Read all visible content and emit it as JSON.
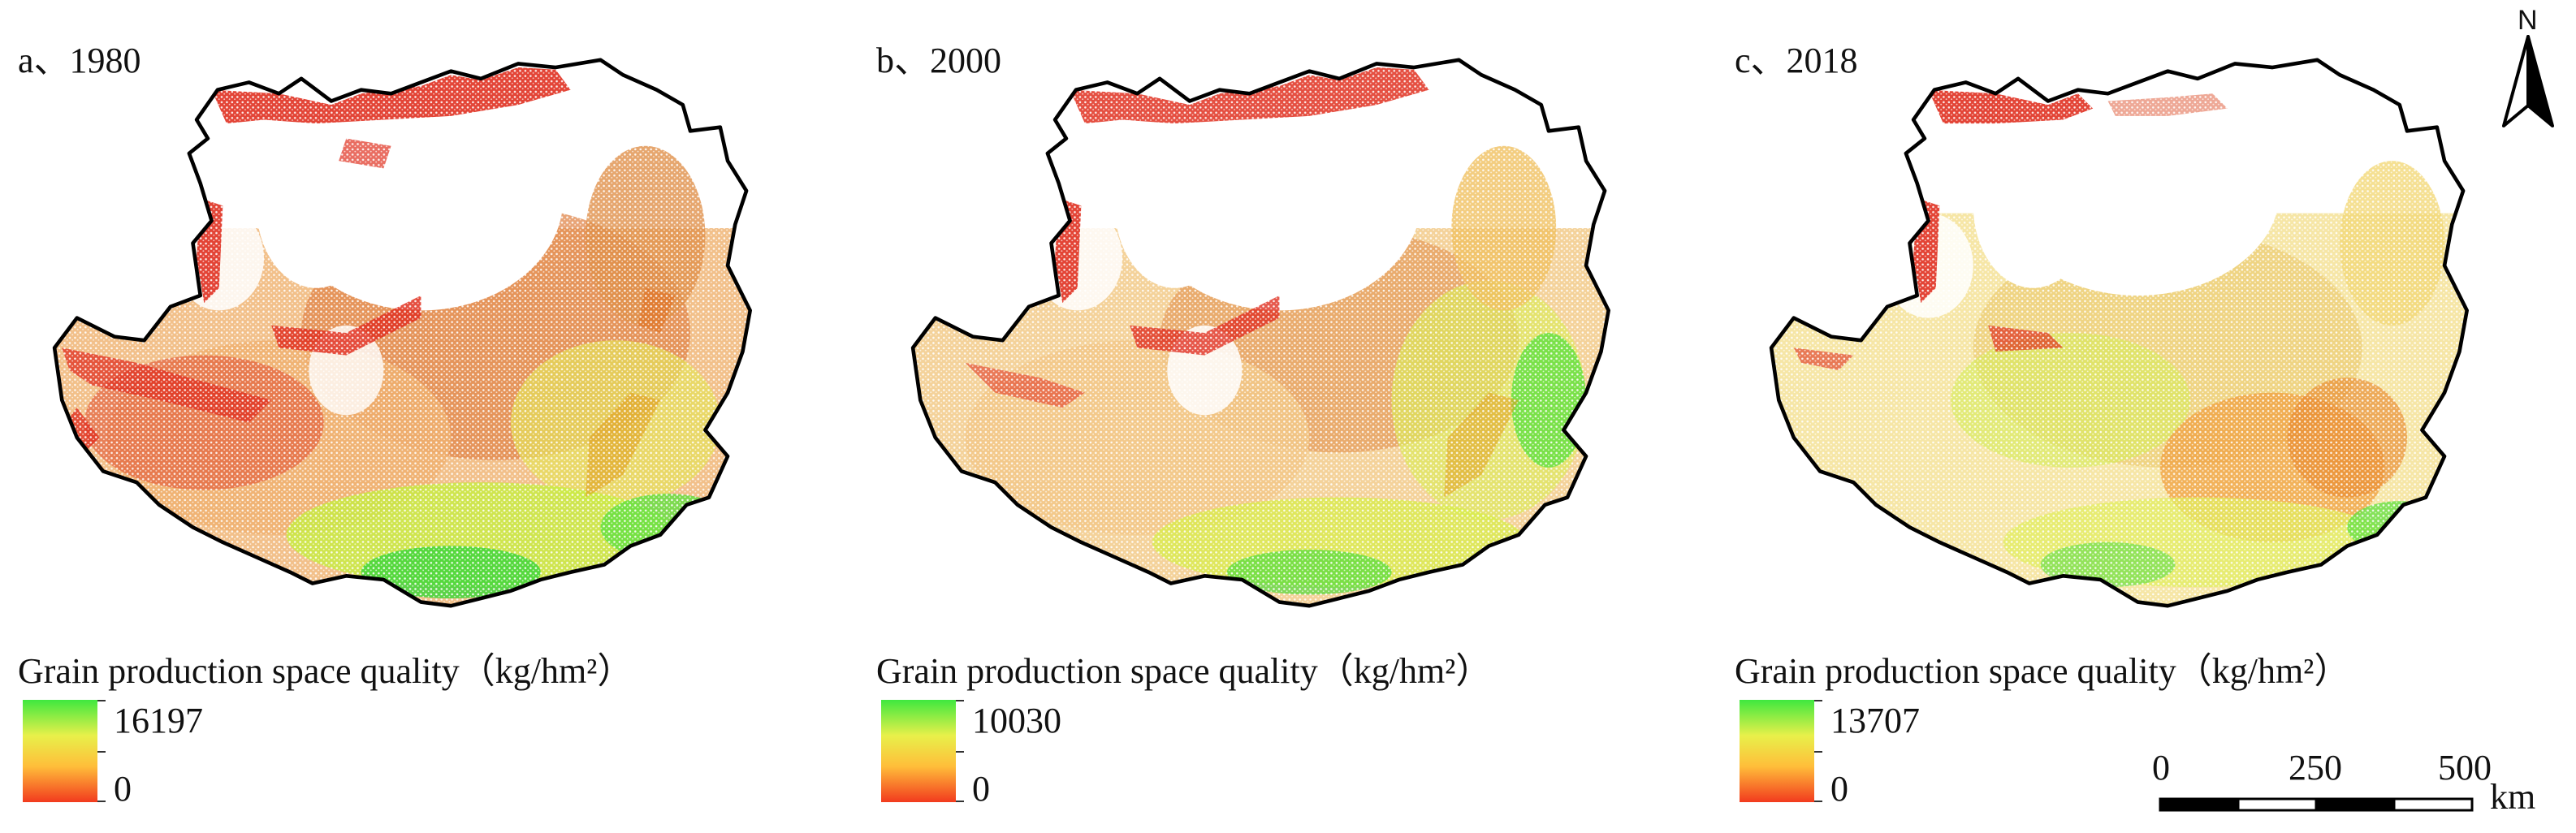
{
  "panels": [
    {
      "label": "a、1980",
      "legend_title": "Grain production space quality（kg/hm²）",
      "legend_max": "16197",
      "legend_min": "0"
    },
    {
      "label": "b、2000",
      "legend_title": "Grain production space quality（kg/hm²）",
      "legend_max": "10030",
      "legend_min": "0"
    },
    {
      "label": "c、2018",
      "legend_title": "Grain production space quality（kg/hm²）",
      "legend_max": "13707",
      "legend_min": "0"
    }
  ],
  "north_arrow": {
    "label": "N"
  },
  "scalebar": {
    "ticks": [
      "0",
      "250",
      "500"
    ],
    "unit": "km"
  },
  "colors": {
    "high": "#3fe83f",
    "mid_high": "#e8f04a",
    "mid_low": "#ffbe3a",
    "low": "#f23a1e",
    "boundary": "#000000"
  }
}
